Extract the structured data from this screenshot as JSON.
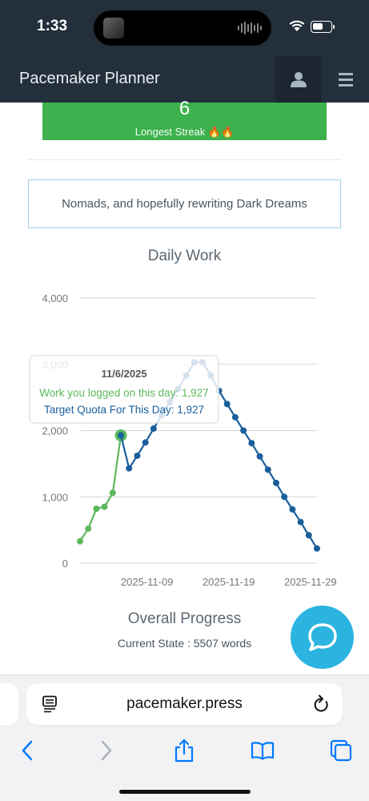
{
  "status": {
    "time": "1:33",
    "battery_level": 0.55
  },
  "app": {
    "title": "Pacemaker Planner"
  },
  "streak": {
    "value": "6",
    "label": "Longest Streak 🔥🔥"
  },
  "project": {
    "description": "Nomads, and hopefully rewriting Dark Dreams"
  },
  "chart_title": "Daily Work",
  "chart_data": {
    "type": "line",
    "ylim": [
      0,
      4000
    ],
    "y_ticks": [
      "0",
      "1,000",
      "2,000",
      "3,000",
      "4,000"
    ],
    "x_tick_labels": [
      "2025-11-09",
      "2025-11-19",
      "2025-11-29"
    ],
    "x_start": "2025-11-01",
    "x_end": "2025-11-30",
    "series": [
      {
        "key": "logged",
        "color": "#5cb85c",
        "points": [
          {
            "x": "2025-11-01",
            "y": 330
          },
          {
            "x": "2025-11-02",
            "y": 520
          },
          {
            "x": "2025-11-03",
            "y": 820
          },
          {
            "x": "2025-11-04",
            "y": 850
          },
          {
            "x": "2025-11-05",
            "y": 1060
          },
          {
            "x": "2025-11-06",
            "y": 1927
          }
        ]
      },
      {
        "key": "target",
        "color": "#1a5f9c",
        "points": [
          {
            "x": "2025-11-06",
            "y": 1927
          },
          {
            "x": "2025-11-07",
            "y": 1430
          },
          {
            "x": "2025-11-08",
            "y": 1620
          },
          {
            "x": "2025-11-09",
            "y": 1820
          },
          {
            "x": "2025-11-10",
            "y": 2030
          },
          {
            "x": "2025-11-11",
            "y": 2230
          },
          {
            "x": "2025-11-12",
            "y": 2430
          },
          {
            "x": "2025-11-13",
            "y": 2630
          },
          {
            "x": "2025-11-14",
            "y": 2830
          },
          {
            "x": "2025-11-15",
            "y": 3030
          },
          {
            "x": "2025-11-16",
            "y": 3030
          },
          {
            "x": "2025-11-17",
            "y": 2830
          },
          {
            "x": "2025-11-18",
            "y": 2600
          },
          {
            "x": "2025-11-19",
            "y": 2400
          },
          {
            "x": "2025-11-20",
            "y": 2200
          },
          {
            "x": "2025-11-21",
            "y": 2000
          },
          {
            "x": "2025-11-22",
            "y": 1810
          },
          {
            "x": "2025-11-23",
            "y": 1610
          },
          {
            "x": "2025-11-24",
            "y": 1410
          },
          {
            "x": "2025-11-25",
            "y": 1210
          },
          {
            "x": "2025-11-26",
            "y": 1000
          },
          {
            "x": "2025-11-27",
            "y": 810
          },
          {
            "x": "2025-11-28",
            "y": 620
          },
          {
            "x": "2025-11-29",
            "y": 420
          },
          {
            "x": "2025-11-30",
            "y": 220
          }
        ]
      }
    ],
    "tooltip": {
      "date": "11/6/2025",
      "logged_line": "Work you logged on this day: 1,927",
      "target_line": "Target Quota For This Day: 1,927",
      "anchor_x": "2025-11-06",
      "anchor_y": 1927
    }
  },
  "overall": {
    "title": "Overall Progress",
    "current_state": "Current State : 5507 words"
  },
  "browser": {
    "url": "pacemaker.press"
  },
  "icons": {
    "user": "user-icon",
    "menu": "hamburger-menu-icon",
    "chat": "chat-bubble-icon",
    "reader": "reader-mode-icon",
    "reload": "reload-icon",
    "back": "back-arrow-icon",
    "forward": "forward-arrow-icon",
    "share": "share-icon",
    "bookmarks": "bookmarks-icon",
    "tabs": "tabs-icon"
  },
  "colors": {
    "nav": "#23303c",
    "streak_green": "#3db14d",
    "chat": "#2cb4e0",
    "accent_blue": "#007aff"
  }
}
